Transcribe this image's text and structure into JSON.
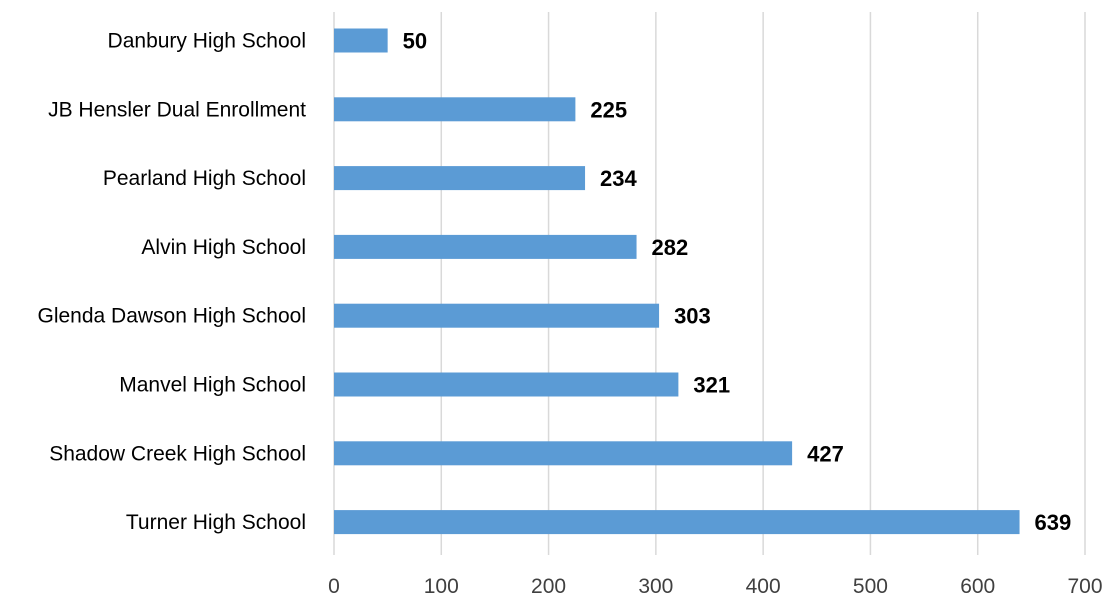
{
  "chart_data": {
    "type": "bar",
    "orientation": "horizontal",
    "categories": [
      "Danbury High School",
      "JB Hensler Dual Enrollment",
      "Pearland High School",
      "Alvin High School",
      "Glenda Dawson High School",
      "Manvel High School",
      "Shadow Creek High School",
      "Turner High School"
    ],
    "values": [
      50,
      225,
      234,
      282,
      303,
      321,
      427,
      639
    ],
    "xlim": [
      0,
      700
    ],
    "xticks": [
      0,
      100,
      200,
      300,
      400,
      500,
      600,
      700
    ],
    "data_labels": true,
    "grid": "vertical",
    "title": "",
    "xlabel": "",
    "ylabel": "",
    "bar_color": "#5b9bd5"
  }
}
